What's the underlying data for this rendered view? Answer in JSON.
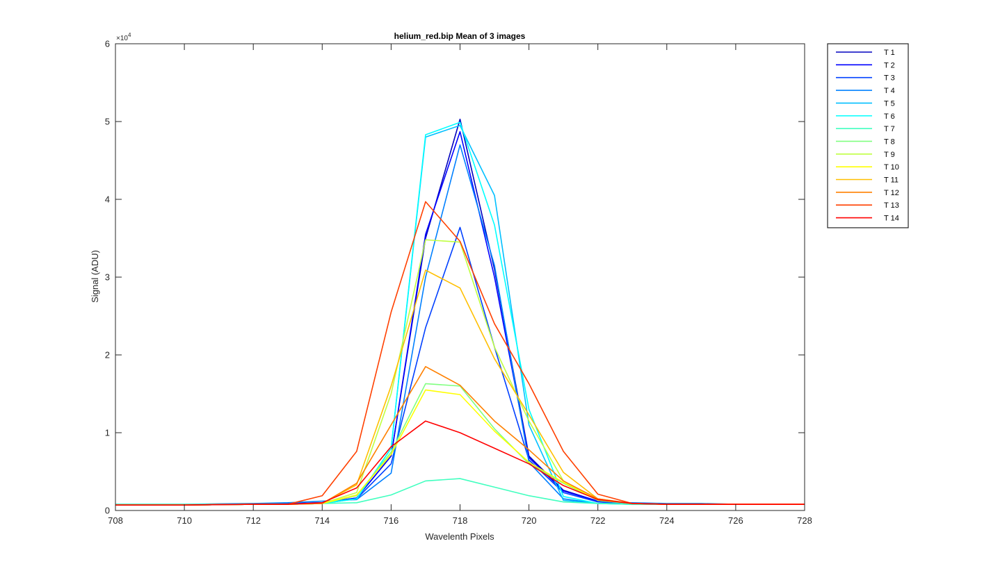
{
  "chart_data": {
    "type": "line",
    "title": "helium_red.bip  Mean of 3 images",
    "xlabel": "Wavelenth Pixels",
    "ylabel": "Signal (ADU)",
    "xlim": [
      708,
      728
    ],
    "ylim": [
      0,
      60000
    ],
    "y_exponent_label": "×10",
    "y_exponent_power": "4",
    "xticks": [
      708,
      710,
      712,
      714,
      716,
      718,
      720,
      722,
      724,
      726,
      728
    ],
    "yticks": [
      0,
      10000,
      20000,
      30000,
      40000,
      50000,
      60000
    ],
    "ytick_labels": [
      "0",
      "1",
      "2",
      "3",
      "4",
      "5",
      "6"
    ],
    "grid": false,
    "legend_position": "outside-right-top",
    "x": [
      708,
      709,
      710,
      711,
      712,
      713,
      714,
      715,
      716,
      717,
      718,
      719,
      720,
      721,
      722,
      723,
      724,
      725,
      726,
      727,
      728
    ],
    "series": [
      {
        "name": "T 1",
        "color": "#0000BF",
        "values": [
          700,
          700,
          700,
          750,
          800,
          900,
          1000,
          1600,
          7000,
          35000,
          50300,
          31000,
          7000,
          2600,
          1200,
          900,
          800,
          800,
          800,
          800,
          800
        ]
      },
      {
        "name": "T 2",
        "color": "#0000FF",
        "values": [
          700,
          700,
          700,
          750,
          800,
          900,
          1000,
          1600,
          7000,
          35500,
          48700,
          30000,
          6800,
          2500,
          1200,
          900,
          800,
          800,
          800,
          800,
          800
        ]
      },
      {
        "name": "T 3",
        "color": "#0040FF",
        "values": [
          700,
          700,
          700,
          750,
          800,
          900,
          1000,
          1500,
          6000,
          23500,
          36400,
          21000,
          6500,
          2300,
          1100,
          900,
          800,
          800,
          800,
          800,
          800
        ]
      },
      {
        "name": "T 4",
        "color": "#0080FF",
        "values": [
          800,
          800,
          800,
          850,
          900,
          1000,
          1200,
          1400,
          4800,
          30000,
          47000,
          31500,
          6200,
          1500,
          900,
          1000,
          900,
          900,
          800,
          800,
          800
        ]
      },
      {
        "name": "T 5",
        "color": "#00BFFF",
        "values": [
          700,
          700,
          700,
          750,
          800,
          800,
          900,
          1500,
          8000,
          48000,
          49500,
          40500,
          11000,
          1300,
          900,
          800,
          800,
          800,
          800,
          800,
          800
        ]
      },
      {
        "name": "T 6",
        "color": "#00FFFF",
        "values": [
          700,
          700,
          700,
          750,
          800,
          800,
          900,
          1500,
          8000,
          48300,
          49900,
          36700,
          13000,
          1800,
          900,
          800,
          800,
          800,
          800,
          800,
          800
        ]
      },
      {
        "name": "T 7",
        "color": "#40FFBF",
        "values": [
          800,
          800,
          800,
          800,
          800,
          800,
          900,
          1000,
          2000,
          3800,
          4100,
          3000,
          1900,
          1100,
          900,
          800,
          800,
          800,
          800,
          800,
          800
        ]
      },
      {
        "name": "T 8",
        "color": "#80FF80",
        "values": [
          700,
          700,
          700,
          750,
          800,
          800,
          900,
          1900,
          7500,
          16300,
          16000,
          10500,
          6000,
          3500,
          1300,
          900,
          800,
          800,
          800,
          800,
          800
        ]
      },
      {
        "name": "T 9",
        "color": "#BFFF40",
        "values": [
          700,
          700,
          700,
          750,
          800,
          800,
          900,
          2300,
          15000,
          34800,
          34500,
          21000,
          11500,
          3800,
          1300,
          900,
          800,
          800,
          800,
          800,
          800
        ]
      },
      {
        "name": "T 10",
        "color": "#FFFF00",
        "values": [
          700,
          700,
          700,
          750,
          800,
          800,
          900,
          2000,
          7200,
          15500,
          14900,
          10200,
          6200,
          3600,
          1400,
          900,
          800,
          800,
          800,
          800,
          800
        ]
      },
      {
        "name": "T 11",
        "color": "#FFBF00",
        "values": [
          700,
          700,
          700,
          750,
          800,
          800,
          900,
          3300,
          16000,
          30900,
          28600,
          19500,
          12300,
          4900,
          1500,
          900,
          800,
          800,
          800,
          800,
          800
        ]
      },
      {
        "name": "T 12",
        "color": "#FF8000",
        "values": [
          700,
          700,
          700,
          750,
          800,
          800,
          900,
          3500,
          11000,
          18500,
          16100,
          11500,
          7800,
          3800,
          1500,
          900,
          800,
          800,
          800,
          800,
          800
        ]
      },
      {
        "name": "T 13",
        "color": "#FF4000",
        "values": [
          700,
          700,
          700,
          750,
          800,
          800,
          1900,
          7600,
          25500,
          39700,
          34600,
          24000,
          16300,
          7600,
          2100,
          900,
          800,
          800,
          800,
          800,
          800
        ]
      },
      {
        "name": "T 14",
        "color": "#FF0000",
        "values": [
          700,
          700,
          700,
          750,
          800,
          800,
          1000,
          2900,
          8200,
          11500,
          10000,
          8000,
          6000,
          3200,
          1400,
          900,
          800,
          800,
          800,
          800,
          800
        ]
      }
    ]
  }
}
